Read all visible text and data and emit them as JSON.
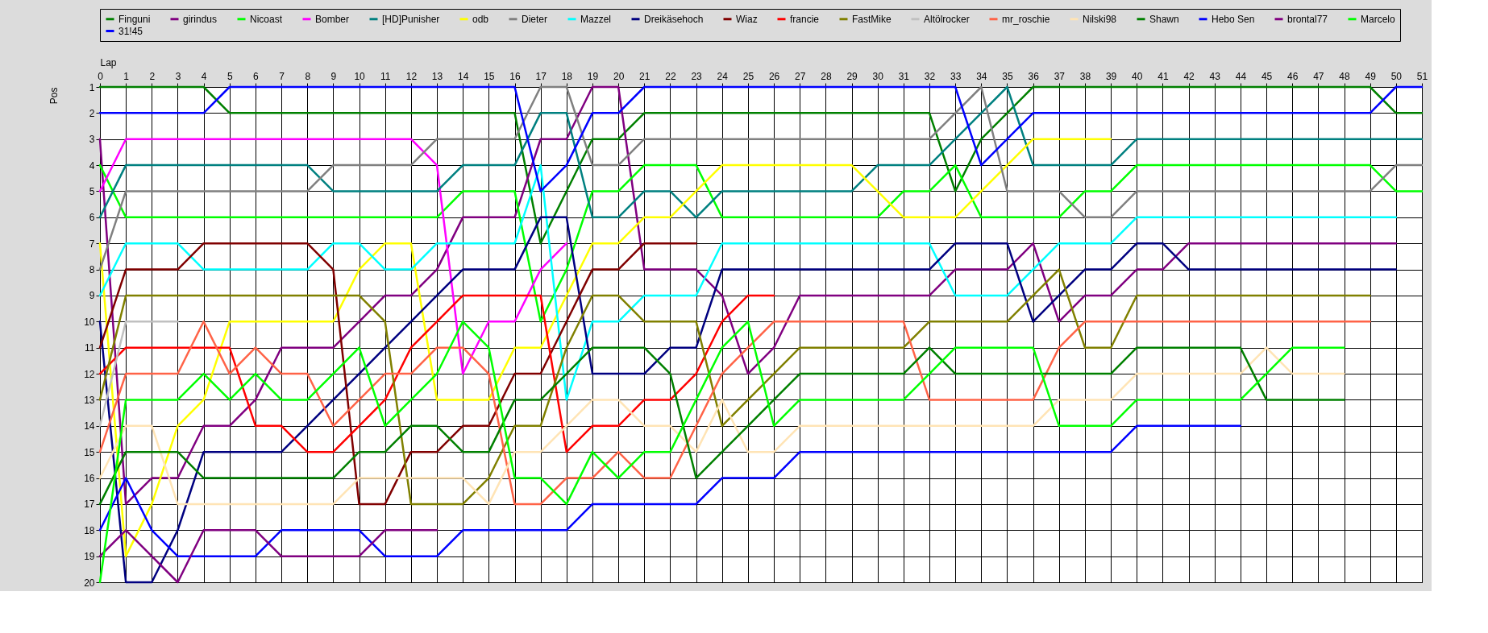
{
  "chart_data": {
    "type": "line",
    "xlabel": "Lap",
    "ylabel": "Pos",
    "x": [
      0,
      1,
      2,
      3,
      4,
      5,
      6,
      7,
      8,
      9,
      10,
      11,
      12,
      13,
      14,
      15,
      16,
      17,
      18,
      19,
      20,
      21,
      22,
      23,
      24,
      25,
      26,
      27,
      28,
      29,
      30,
      31,
      32,
      33,
      34,
      35,
      36,
      37,
      38,
      39,
      40,
      41,
      42,
      43,
      44,
      45,
      46,
      47,
      48,
      49,
      50,
      51
    ],
    "xlim": [
      0,
      51
    ],
    "xticks": [
      0,
      1,
      2,
      3,
      4,
      5,
      6,
      7,
      8,
      9,
      10,
      11,
      12,
      13,
      14,
      15,
      16,
      17,
      18,
      19,
      20,
      21,
      22,
      23,
      24,
      25,
      26,
      27,
      28,
      29,
      30,
      31,
      32,
      33,
      34,
      35,
      36,
      37,
      38,
      39,
      40,
      41,
      42,
      43,
      44,
      45,
      46,
      47,
      48,
      49,
      50,
      51
    ],
    "ylim": [
      20,
      1
    ],
    "yticks": [
      1,
      2,
      3,
      4,
      5,
      6,
      7,
      8,
      9,
      10,
      11,
      12,
      13,
      14,
      15,
      16,
      17,
      18,
      19,
      20
    ],
    "grid": true,
    "legend": "top",
    "line_style": "solid",
    "series": [
      {
        "name": "Finguni",
        "color": "#008000",
        "values": [
          1,
          1,
          1,
          1,
          1,
          2,
          2,
          2,
          2,
          2,
          2,
          2,
          2,
          2,
          2,
          2,
          2,
          7,
          5,
          3,
          3,
          2,
          2,
          2,
          2,
          2,
          2,
          2,
          2,
          2,
          2,
          2,
          2,
          5,
          3,
          2,
          1,
          1,
          1,
          1,
          1,
          1,
          1,
          1,
          1,
          1,
          1,
          1,
          1,
          1,
          2,
          2
        ]
      },
      {
        "name": "girindus",
        "color": "#800080",
        "values": [
          3,
          17,
          16,
          16,
          14,
          14,
          13,
          11,
          11,
          11,
          10,
          9,
          9,
          8,
          6,
          6,
          6,
          3,
          3,
          1,
          1,
          8,
          8,
          8,
          9,
          12,
          11,
          9,
          9,
          9,
          9,
          9,
          9,
          8,
          8,
          8,
          7,
          10,
          9,
          9,
          8,
          8,
          7,
          7,
          7,
          7,
          7,
          7,
          7,
          7,
          7,
          null
        ]
      },
      {
        "name": "Nicoast",
        "color": "#00ff00",
        "values": [
          4,
          6,
          6,
          6,
          6,
          6,
          6,
          6,
          6,
          6,
          6,
          6,
          6,
          6,
          5,
          5,
          5,
          10,
          8,
          5,
          5,
          4,
          4,
          4,
          6,
          6,
          6,
          6,
          6,
          6,
          6,
          5,
          5,
          4,
          6,
          6,
          6,
          6,
          5,
          5,
          4,
          4,
          4,
          4,
          4,
          4,
          4,
          4,
          4,
          4,
          5,
          5
        ]
      },
      {
        "name": "Bomber",
        "color": "#ff00ff",
        "values": [
          5,
          3,
          3,
          3,
          3,
          3,
          3,
          3,
          3,
          3,
          3,
          3,
          3,
          4,
          12,
          10,
          10,
          8,
          7,
          null,
          null,
          null,
          null,
          null,
          null,
          null,
          null,
          null,
          null,
          null,
          null,
          null,
          null,
          null,
          null,
          null,
          null,
          null,
          null,
          null,
          null,
          null,
          null,
          null,
          null,
          null,
          null,
          null,
          null,
          null,
          null,
          null
        ]
      },
      {
        "name": "[HD]Punisher",
        "color": "#008080",
        "values": [
          6,
          4,
          4,
          4,
          4,
          4,
          4,
          4,
          4,
          5,
          5,
          5,
          5,
          5,
          4,
          4,
          4,
          2,
          2,
          6,
          6,
          5,
          5,
          6,
          5,
          5,
          5,
          5,
          5,
          5,
          4,
          4,
          4,
          3,
          2,
          1,
          4,
          4,
          4,
          4,
          3,
          3,
          3,
          3,
          3,
          3,
          3,
          3,
          3,
          3,
          3,
          3
        ]
      },
      {
        "name": "odb",
        "color": "#ffff00",
        "values": [
          7,
          19,
          17,
          14,
          13,
          10,
          10,
          10,
          10,
          10,
          8,
          7,
          7,
          13,
          13,
          13,
          11,
          11,
          9,
          7,
          7,
          6,
          6,
          5,
          4,
          4,
          4,
          4,
          4,
          4,
          5,
          6,
          6,
          6,
          5,
          4,
          3,
          3,
          3,
          3,
          null,
          null,
          null,
          null,
          null,
          null,
          null,
          null,
          null,
          null,
          null,
          null
        ]
      },
      {
        "name": "Dieter",
        "color": "#808080",
        "values": [
          8,
          5,
          5,
          5,
          5,
          5,
          5,
          5,
          5,
          4,
          4,
          4,
          4,
          3,
          3,
          3,
          3,
          1,
          1,
          4,
          4,
          3,
          3,
          3,
          3,
          3,
          3,
          3,
          3,
          3,
          3,
          3,
          3,
          2,
          1,
          5,
          5,
          5,
          6,
          6,
          5,
          5,
          5,
          5,
          5,
          5,
          5,
          5,
          5,
          5,
          4,
          4
        ]
      },
      {
        "name": "Mazzel",
        "color": "#00ffff",
        "values": [
          9,
          7,
          7,
          7,
          8,
          8,
          8,
          8,
          8,
          7,
          7,
          8,
          8,
          7,
          7,
          7,
          7,
          4,
          13,
          10,
          10,
          9,
          9,
          9,
          7,
          7,
          7,
          7,
          7,
          7,
          7,
          7,
          7,
          9,
          9,
          9,
          8,
          7,
          7,
          7,
          6,
          6,
          6,
          6,
          6,
          6,
          6,
          6,
          6,
          6,
          6,
          null
        ]
      },
      {
        "name": "Dreikäsehoch",
        "color": "#000080",
        "values": [
          10,
          20,
          20,
          18,
          15,
          15,
          15,
          15,
          14,
          13,
          12,
          11,
          10,
          9,
          8,
          8,
          8,
          6,
          6,
          12,
          12,
          12,
          11,
          11,
          8,
          8,
          8,
          8,
          8,
          8,
          8,
          8,
          8,
          7,
          7,
          7,
          10,
          9,
          8,
          8,
          7,
          7,
          8,
          8,
          8,
          8,
          8,
          8,
          8,
          8,
          8,
          null
        ]
      },
      {
        "name": "Wiaz",
        "color": "#800000",
        "values": [
          11,
          8,
          8,
          8,
          7,
          7,
          7,
          7,
          7,
          8,
          17,
          17,
          15,
          15,
          14,
          14,
          12,
          12,
          10,
          8,
          8,
          7,
          7,
          7,
          null,
          null,
          null,
          null,
          null,
          null,
          null,
          null,
          null,
          null,
          null,
          null,
          null,
          null,
          null,
          null,
          null,
          null,
          null,
          null,
          null,
          null,
          null,
          null,
          null,
          null,
          null,
          null
        ]
      },
      {
        "name": "francie",
        "color": "#ff0000",
        "values": [
          12,
          11,
          11,
          11,
          11,
          11,
          14,
          14,
          15,
          15,
          14,
          13,
          11,
          10,
          9,
          9,
          9,
          9,
          15,
          14,
          14,
          13,
          13,
          12,
          10,
          9,
          9,
          null,
          null,
          null,
          null,
          null,
          null,
          null,
          null,
          null,
          null,
          null,
          null,
          null,
          null,
          null,
          null,
          null,
          null,
          null,
          null,
          null,
          null,
          null,
          null,
          null
        ]
      },
      {
        "name": "FastMike",
        "color": "#808000",
        "values": [
          13,
          9,
          9,
          9,
          9,
          9,
          9,
          9,
          9,
          9,
          9,
          10,
          17,
          17,
          17,
          16,
          14,
          14,
          11,
          9,
          9,
          10,
          10,
          10,
          14,
          13,
          12,
          11,
          11,
          11,
          11,
          11,
          10,
          10,
          10,
          10,
          9,
          8,
          11,
          11,
          9,
          9,
          9,
          9,
          9,
          9,
          9,
          9,
          9,
          9,
          null,
          null
        ]
      },
      {
        "name": "Altölrocker",
        "color": "#c0c0c0",
        "values": [
          14,
          10,
          10,
          10,
          null,
          null,
          null,
          null,
          null,
          null,
          null,
          null,
          null,
          null,
          null,
          null,
          null,
          null,
          null,
          null,
          null,
          null,
          null,
          null,
          null,
          null,
          null,
          null,
          null,
          null,
          null,
          null,
          null,
          null,
          null,
          null,
          null,
          null,
          null,
          null,
          null,
          null,
          null,
          null,
          null,
          null,
          null,
          null,
          null,
          null,
          null,
          null
        ]
      },
      {
        "name": "mr_roschie",
        "color": "#ff6347",
        "values": [
          15,
          12,
          12,
          12,
          10,
          12,
          11,
          12,
          12,
          14,
          13,
          12,
          12,
          11,
          11,
          12,
          17,
          17,
          16,
          16,
          15,
          16,
          16,
          14,
          12,
          11,
          10,
          10,
          10,
          10,
          10,
          10,
          13,
          13,
          13,
          13,
          13,
          11,
          10,
          10,
          10,
          10,
          10,
          10,
          10,
          10,
          10,
          10,
          10,
          10,
          null,
          null
        ]
      },
      {
        "name": "Nilski98",
        "color": "#ffe4b5",
        "values": [
          16,
          14,
          14,
          17,
          17,
          17,
          17,
          17,
          17,
          17,
          16,
          16,
          16,
          16,
          16,
          17,
          15,
          15,
          14,
          13,
          13,
          14,
          14,
          15,
          13,
          15,
          15,
          14,
          14,
          14,
          14,
          14,
          14,
          14,
          14,
          14,
          14,
          13,
          13,
          13,
          12,
          12,
          12,
          12,
          12,
          11,
          12,
          12,
          12,
          null,
          null,
          null
        ]
      },
      {
        "name": "Shawn",
        "color": "#008000",
        "values": [
          17,
          15,
          15,
          15,
          16,
          16,
          16,
          16,
          16,
          16,
          15,
          15,
          14,
          14,
          15,
          15,
          13,
          13,
          12,
          11,
          11,
          11,
          12,
          16,
          15,
          14,
          13,
          12,
          12,
          12,
          12,
          12,
          11,
          12,
          12,
          12,
          12,
          12,
          12,
          12,
          11,
          11,
          11,
          11,
          11,
          13,
          13,
          13,
          13,
          null,
          null,
          null
        ]
      },
      {
        "name": "Hebo Sen",
        "color": "#0000ff",
        "values": [
          18,
          16,
          18,
          19,
          19,
          19,
          19,
          18,
          18,
          18,
          18,
          19,
          19,
          19,
          18,
          18,
          18,
          18,
          18,
          17,
          17,
          17,
          17,
          17,
          16,
          16,
          16,
          15,
          15,
          15,
          15,
          15,
          15,
          15,
          15,
          15,
          15,
          15,
          15,
          15,
          14,
          14,
          14,
          14,
          14,
          null,
          null,
          null,
          null,
          null,
          null,
          null
        ]
      },
      {
        "name": "brontal77",
        "color": "#800080",
        "values": [
          19,
          18,
          19,
          20,
          18,
          18,
          18,
          19,
          19,
          19,
          19,
          18,
          18,
          18,
          null,
          null,
          null,
          null,
          null,
          null,
          null,
          null,
          null,
          null,
          null,
          null,
          null,
          null,
          null,
          null,
          null,
          null,
          null,
          null,
          null,
          null,
          null,
          null,
          null,
          null,
          null,
          null,
          null,
          null,
          null,
          null,
          null,
          null,
          null,
          null,
          null,
          null
        ]
      },
      {
        "name": "Marcelo",
        "color": "#00ff00",
        "values": [
          20,
          13,
          13,
          13,
          12,
          13,
          12,
          13,
          13,
          12,
          11,
          14,
          13,
          12,
          10,
          11,
          16,
          16,
          17,
          15,
          16,
          15,
          15,
          13,
          11,
          10,
          14,
          13,
          13,
          13,
          13,
          13,
          12,
          11,
          11,
          11,
          11,
          14,
          14,
          14,
          13,
          13,
          13,
          13,
          13,
          12,
          11,
          11,
          11,
          null,
          null,
          null
        ]
      },
      {
        "name": "31!45",
        "color": "#0000ff",
        "values": [
          2,
          2,
          2,
          2,
          2,
          1,
          1,
          1,
          1,
          1,
          1,
          1,
          1,
          1,
          1,
          1,
          1,
          5,
          4,
          2,
          2,
          1,
          1,
          1,
          1,
          1,
          1,
          1,
          1,
          1,
          1,
          1,
          1,
          1,
          4,
          3,
          2,
          2,
          2,
          2,
          2,
          2,
          2,
          2,
          2,
          2,
          2,
          2,
          2,
          2,
          1,
          1
        ]
      }
    ]
  }
}
